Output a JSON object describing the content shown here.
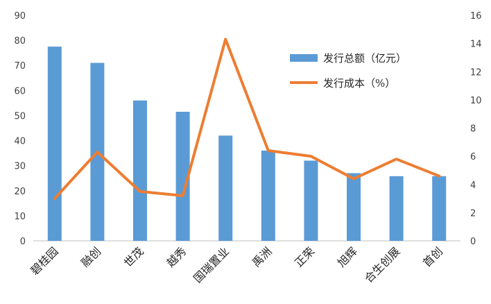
{
  "chart_data": {
    "type": "bar",
    "categories": [
      "碧桂园",
      "融创",
      "世茂",
      "越秀",
      "国瑞置业",
      "禹洲",
      "正荣",
      "旭辉",
      "合生创展",
      "首创"
    ],
    "series": [
      {
        "name": "发行总额（亿元）",
        "type": "bar",
        "axis": "left",
        "color": "#5B9BD5",
        "values": [
          77.5,
          71,
          56,
          51.5,
          42,
          36,
          32,
          27,
          25.8,
          25.8
        ]
      },
      {
        "name": "发行成本（%）",
        "type": "line",
        "axis": "right",
        "color": "#ED7D31",
        "values": [
          3.0,
          6.3,
          3.5,
          3.2,
          14.3,
          6.4,
          6.0,
          4.4,
          5.8,
          4.6
        ]
      }
    ],
    "y_left": {
      "min": 0,
      "max": 90,
      "step": 10,
      "ticks": [
        "0",
        "10",
        "20",
        "30",
        "40",
        "50",
        "60",
        "70",
        "80",
        "90"
      ]
    },
    "y_right": {
      "min": 0,
      "max": 16,
      "step": 2,
      "ticks": [
        "0",
        "2",
        "4",
        "6",
        "8",
        "10",
        "12",
        "14",
        "16"
      ]
    },
    "grid": false,
    "legend_position": "top-right"
  }
}
